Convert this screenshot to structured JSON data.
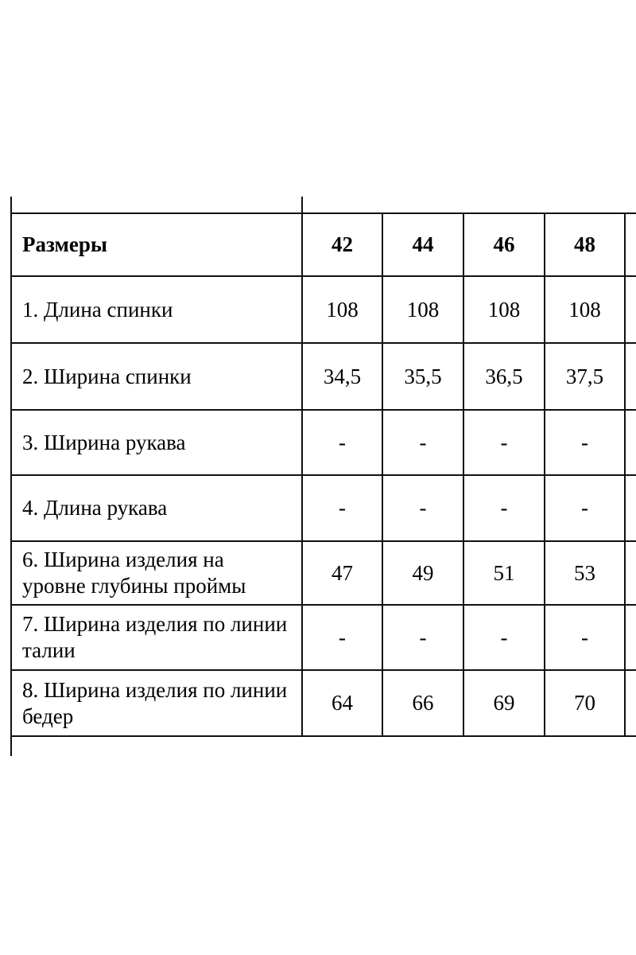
{
  "table": {
    "header": {
      "label": "Размеры",
      "sizes": [
        "42",
        "44",
        "46",
        "48"
      ]
    },
    "rows": [
      {
        "label": "1. Длина спинки",
        "values": [
          "108",
          "108",
          "108",
          "108"
        ]
      },
      {
        "label": "2. Ширина спинки",
        "values": [
          "34,5",
          "35,5",
          "36,5",
          "37,5"
        ]
      },
      {
        "label": "3. Ширина рукава",
        "values": [
          "-",
          "-",
          "-",
          "-"
        ]
      },
      {
        "label": "4. Длина рукава",
        "values": [
          "-",
          "-",
          "-",
          "-"
        ]
      },
      {
        "label": "6. Ширина изделия на уровне глубины проймы",
        "values": [
          "47",
          "49",
          "51",
          "53"
        ]
      },
      {
        "label": "7. Ширина изделия по линии талии",
        "values": [
          "-",
          "-",
          "-",
          "-"
        ]
      },
      {
        "label": "8. Ширина изделия по линии бедер",
        "values": [
          "64",
          "66",
          "69",
          "70"
        ]
      }
    ]
  }
}
